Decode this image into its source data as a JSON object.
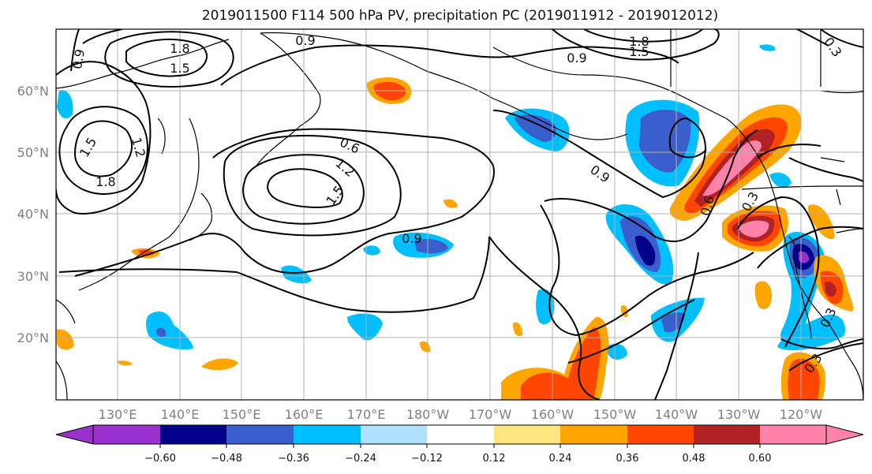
{
  "title": "2019011500 F114 500 hPa PV, precipitation PC (2019011912 - 2019012012)",
  "lat_labels": [
    "60°N",
    "50°N",
    "40°N",
    "30°N",
    "20°N"
  ],
  "lon_labels": [
    "130°E",
    "140°E",
    "150°E",
    "160°E",
    "170°E",
    "180°W",
    "170°W",
    "160°W",
    "150°W",
    "140°W",
    "130°W",
    "120°W"
  ],
  "contour_labels": [
    "0.9",
    "1.8",
    "1.5",
    "0.9",
    "1.8",
    "1.5",
    "0.3",
    "0.9",
    "1.5",
    "1.2",
    "1.5",
    "1.8",
    "0.6",
    "1.2",
    "1.5",
    "0.9",
    "0.9",
    "0.6",
    "0.3",
    "0.3",
    "0.3"
  ],
  "colorbar": {
    "ticks": [
      "−0.60",
      "−0.48",
      "−0.36",
      "−0.24",
      "−0.12",
      "0.12",
      "0.24",
      "0.36",
      "0.48",
      "0.60"
    ],
    "colors": [
      "#9932cc",
      "#00008b",
      "#3a5fcd",
      "#00bfff",
      "#b0e2ff",
      "#ffffff",
      "#ffe680",
      "#ffa500",
      "#ff4500",
      "#b22222",
      "#ff82ab"
    ]
  },
  "map": {
    "lon_range": [
      "120°E",
      "110°W"
    ],
    "lat_range": [
      "10°N",
      "70°N"
    ],
    "fields": [
      "500 hPa PV contours",
      "precipitation PC shading"
    ]
  }
}
